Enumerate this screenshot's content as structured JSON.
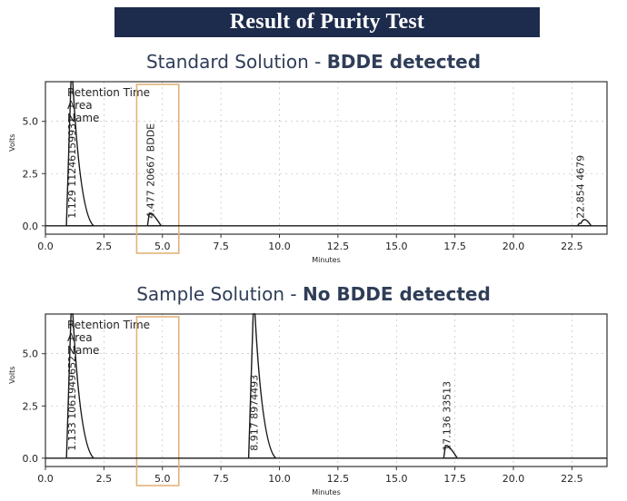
{
  "banner": {
    "title": "Result of Purity Test"
  },
  "colors": {
    "banner_bg": "#1d2b4c",
    "panel_title": "#2f3d57",
    "highlight_box": "#e2b27a",
    "trace": "#1a1a1a"
  },
  "chart_data": [
    {
      "type": "line",
      "title_prefix": "Standard Solution - ",
      "title_suffix": "BDDE detected",
      "xlabel": "Minutes",
      "ylabel": "Volts",
      "xlim": [
        0,
        24
      ],
      "ylim": [
        -0.4,
        6.9
      ],
      "x_ticks": [
        "0.0",
        "2.5",
        "5.0",
        "7.5",
        "10.0",
        "12.5",
        "15.0",
        "17.5",
        "20.0",
        "22.5"
      ],
      "y_ticks": [
        "0.0",
        "2.5",
        "5.0"
      ],
      "legend": [
        "Retention Time",
        "Area",
        "Name"
      ],
      "peaks": [
        {
          "rt": 1.129,
          "height": 6.9,
          "label": "1.129  11246159931"
        },
        {
          "rt": 4.477,
          "height": 0.6,
          "label": "4.477  20667  BDDE"
        },
        {
          "rt": 22.854,
          "height": 0.12,
          "label": "22.854  4679"
        }
      ],
      "highlight_range": [
        3.9,
        5.7
      ]
    },
    {
      "type": "line",
      "title_prefix": "Sample Solution - ",
      "title_suffix": "No BDDE detected",
      "xlabel": "Minutes",
      "ylabel": "Volts",
      "xlim": [
        0,
        24
      ],
      "ylim": [
        -0.4,
        6.9
      ],
      "x_ticks": [
        "0.0",
        "2.5",
        "5.0",
        "7.5",
        "10.0",
        "12.5",
        "15.0",
        "17.5",
        "20.0",
        "22.5"
      ],
      "y_ticks": [
        "0.0",
        "2.5",
        "5.0"
      ],
      "legend": [
        "Retention Time",
        "Area",
        "Name"
      ],
      "peaks": [
        {
          "rt": 1.133,
          "height": 6.9,
          "label": "1.133  1061949652"
        },
        {
          "rt": 8.917,
          "height": 6.9,
          "label": "8.917  8974493"
        },
        {
          "rt": 17.136,
          "height": 0.6,
          "label": "17.136  33513"
        }
      ],
      "highlight_range": [
        3.9,
        5.7
      ]
    }
  ]
}
